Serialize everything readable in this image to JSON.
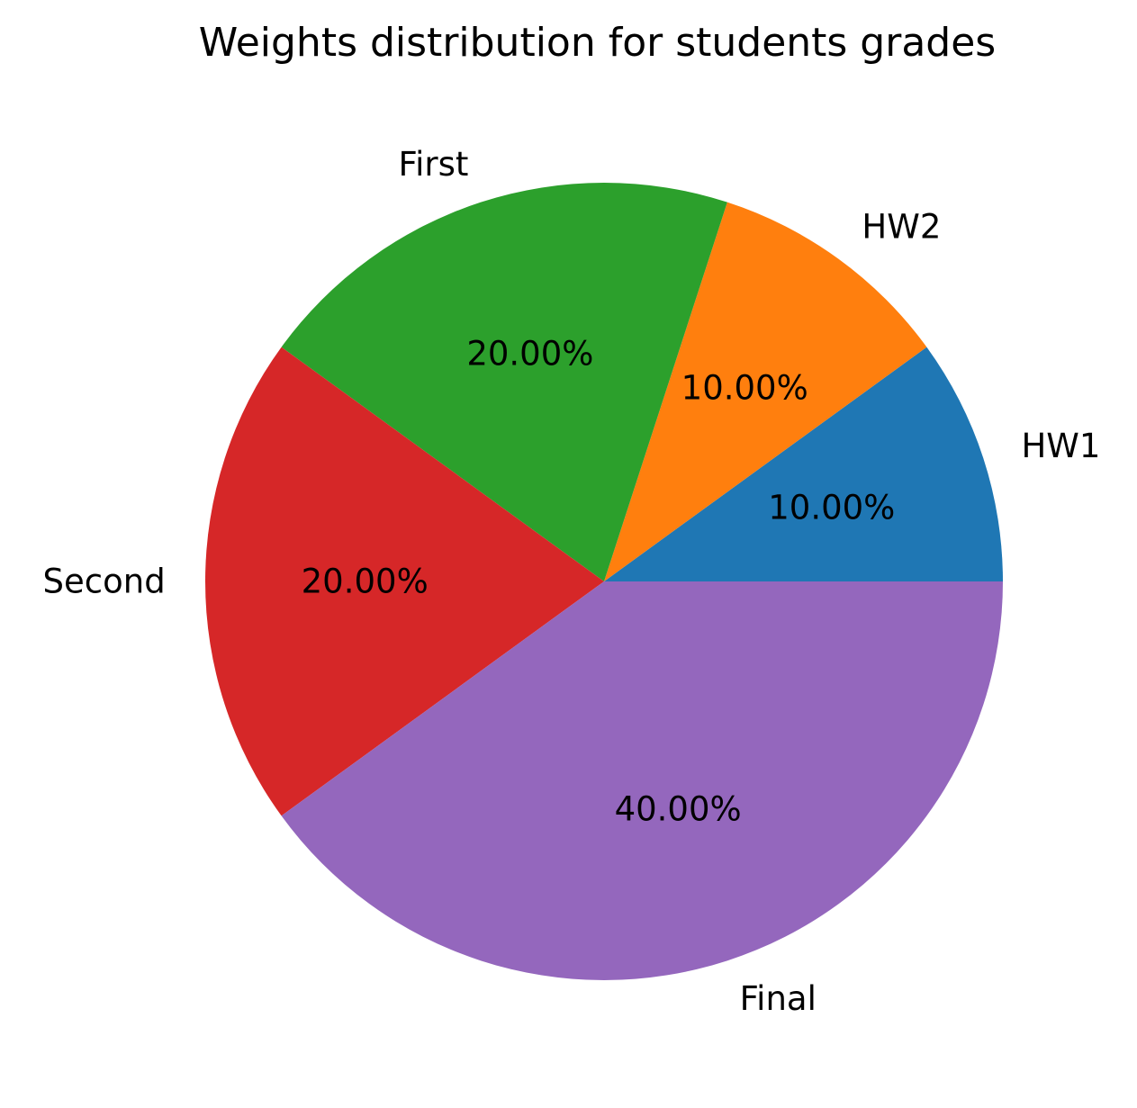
{
  "chart_data": {
    "type": "pie",
    "title": "Weights distribution for students grades",
    "slices": [
      {
        "label": "HW1",
        "value": 10,
        "pct_label": "10.00%",
        "color": "#1f77b4"
      },
      {
        "label": "HW2",
        "value": 10,
        "pct_label": "10.00%",
        "color": "#ff7f0e"
      },
      {
        "label": "First",
        "value": 20,
        "pct_label": "20.00%",
        "color": "#2ca02c"
      },
      {
        "label": "Second",
        "value": 20,
        "pct_label": "20.00%",
        "color": "#d62728"
      },
      {
        "label": "Final",
        "value": 40,
        "pct_label": "40.00%",
        "color": "#9467bd"
      }
    ],
    "start_angle_deg": 0,
    "direction": "counterclockwise",
    "legend": "none"
  }
}
